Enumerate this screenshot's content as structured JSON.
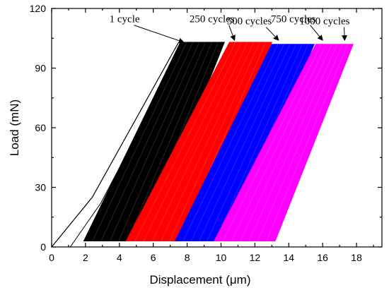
{
  "chart_data": {
    "type": "line",
    "title": "",
    "xlabel": "Displacement (μm)",
    "ylabel": "Load (mN)",
    "xlim": [
      0,
      19.5
    ],
    "ylim": [
      0,
      120
    ],
    "xticks": [
      "0",
      "2",
      "4",
      "6",
      "8",
      "10",
      "12",
      "14",
      "16",
      "18"
    ],
    "yticks": [
      "0",
      "30",
      "60",
      "90",
      "120"
    ],
    "grid": false,
    "series": [
      {
        "color": "#000000",
        "loading_curve": {
          "x": [
            0,
            2.4,
            7.5
          ],
          "y": [
            0,
            25,
            103
          ]
        },
        "band": {
          "x_left_bottom": 1.9,
          "x_right_bottom": 5.5,
          "x_left_top": 7.6,
          "x_right_top": 10.2,
          "y_bottom": 3,
          "y_top": 103
        }
      },
      {
        "color": "#ff0000",
        "band": {
          "x_left_bottom": 4.4,
          "x_right_bottom": 8.0,
          "x_left_top": 10.5,
          "x_right_top": 13.0,
          "y_bottom": 3,
          "y_top": 103
        }
      },
      {
        "color": "#0000ff",
        "band": {
          "x_left_bottom": 7.3,
          "x_right_bottom": 10.6,
          "x_left_top": 13.0,
          "x_right_top": 15.5,
          "y_bottom": 3,
          "y_top": 102
        }
      },
      {
        "color": "#ff00ff",
        "band": {
          "x_left_bottom": 9.6,
          "x_right_bottom": 13.2,
          "x_left_top": 15.6,
          "x_right_top": 17.8,
          "y_bottom": 3,
          "y_top": 102
        }
      }
    ],
    "annotations": [
      {
        "text": "1 cycle",
        "x": 5.2,
        "y": 113,
        "arrow_to_x": 7.8,
        "arrow_to_y": 103
      },
      {
        "text": "250 cycles",
        "x": 10.8,
        "y": 113,
        "arrow_to_x": 10.8,
        "arrow_to_y": 104
      },
      {
        "text": "500 cycles",
        "x": 13.0,
        "y": 112,
        "arrow_to_x": 13.4,
        "arrow_to_y": 104
      },
      {
        "text": "750 cycles",
        "x": 15.6,
        "y": 113,
        "arrow_to_x": 16.0,
        "arrow_to_y": 104
      },
      {
        "text": "1000 cycles",
        "x": 17.6,
        "y": 112,
        "arrow_to_x": 17.3,
        "arrow_to_y": 104
      }
    ]
  }
}
